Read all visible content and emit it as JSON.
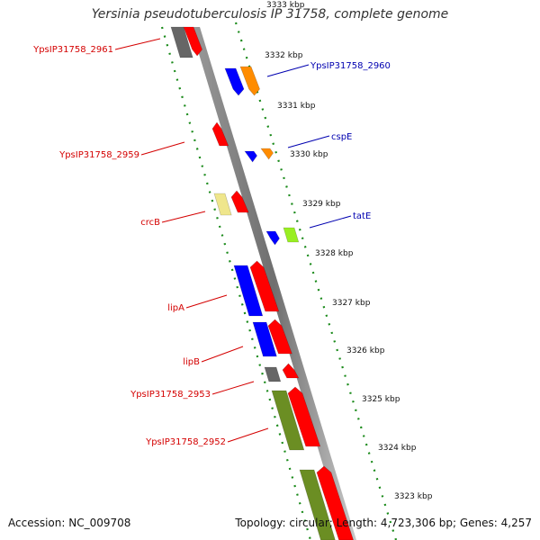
{
  "title": "Yersinia pseudotuberculosis IP 31758, complete genome",
  "footer": {
    "accession": "Accession: NC_009708",
    "summary": "Topology: circular; Length: 4,723,306 bp; Genes: 4,257"
  },
  "ticks": [
    "3333 kbp",
    "3332 kbp",
    "3331 kbp",
    "3330 kbp",
    "3329 kbp",
    "3328 kbp",
    "3327 kbp",
    "3326 kbp",
    "3325 kbp",
    "3324 kbp",
    "3323 kbp"
  ],
  "left_labels": [
    "YpsIP31758_2961",
    "YpsIP31758_2959",
    "crcB",
    "lipA",
    "lipB",
    "YpsIP31758_2953",
    "YpsIP31758_2952"
  ],
  "right_labels": [
    "YpsIP31758_2960",
    "cspE",
    "tatE"
  ],
  "colors": {
    "red": "#ff0000",
    "blue": "#0000ff",
    "orange": "#ff8c00",
    "gray": "#666666",
    "khaki": "#efe68c",
    "lime": "#99ee22",
    "olive": "#6b8e23",
    "backbone": "#888888",
    "tick_green": "#1a8a1a"
  }
}
